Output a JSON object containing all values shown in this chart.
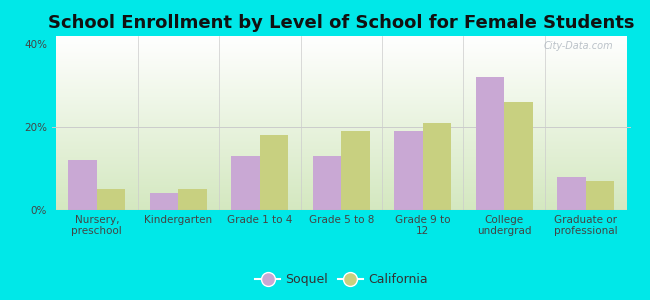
{
  "title": "School Enrollment by Level of School for Female Students",
  "categories": [
    "Nursery,\npreschool",
    "Kindergarten",
    "Grade 1 to 4",
    "Grade 5 to 8",
    "Grade 9 to\n12",
    "College\nundergrad",
    "Graduate or\nprofessional"
  ],
  "soquel": [
    12,
    4,
    13,
    13,
    19,
    32,
    8
  ],
  "california": [
    5,
    5,
    18,
    19,
    21,
    26,
    7
  ],
  "soquel_color": "#c9a8d4",
  "california_color": "#c8d080",
  "background_color": "#00e8e8",
  "grad_top": "#ffffff",
  "grad_bottom": "#d4e8c0",
  "ylabel_ticks": [
    "0%",
    "20%",
    "40%"
  ],
  "yticks": [
    0,
    20,
    40
  ],
  "ylim": [
    0,
    42
  ],
  "bar_width": 0.35,
  "title_fontsize": 13,
  "tick_fontsize": 7.5,
  "legend_fontsize": 9,
  "watermark": "City-Data.com"
}
